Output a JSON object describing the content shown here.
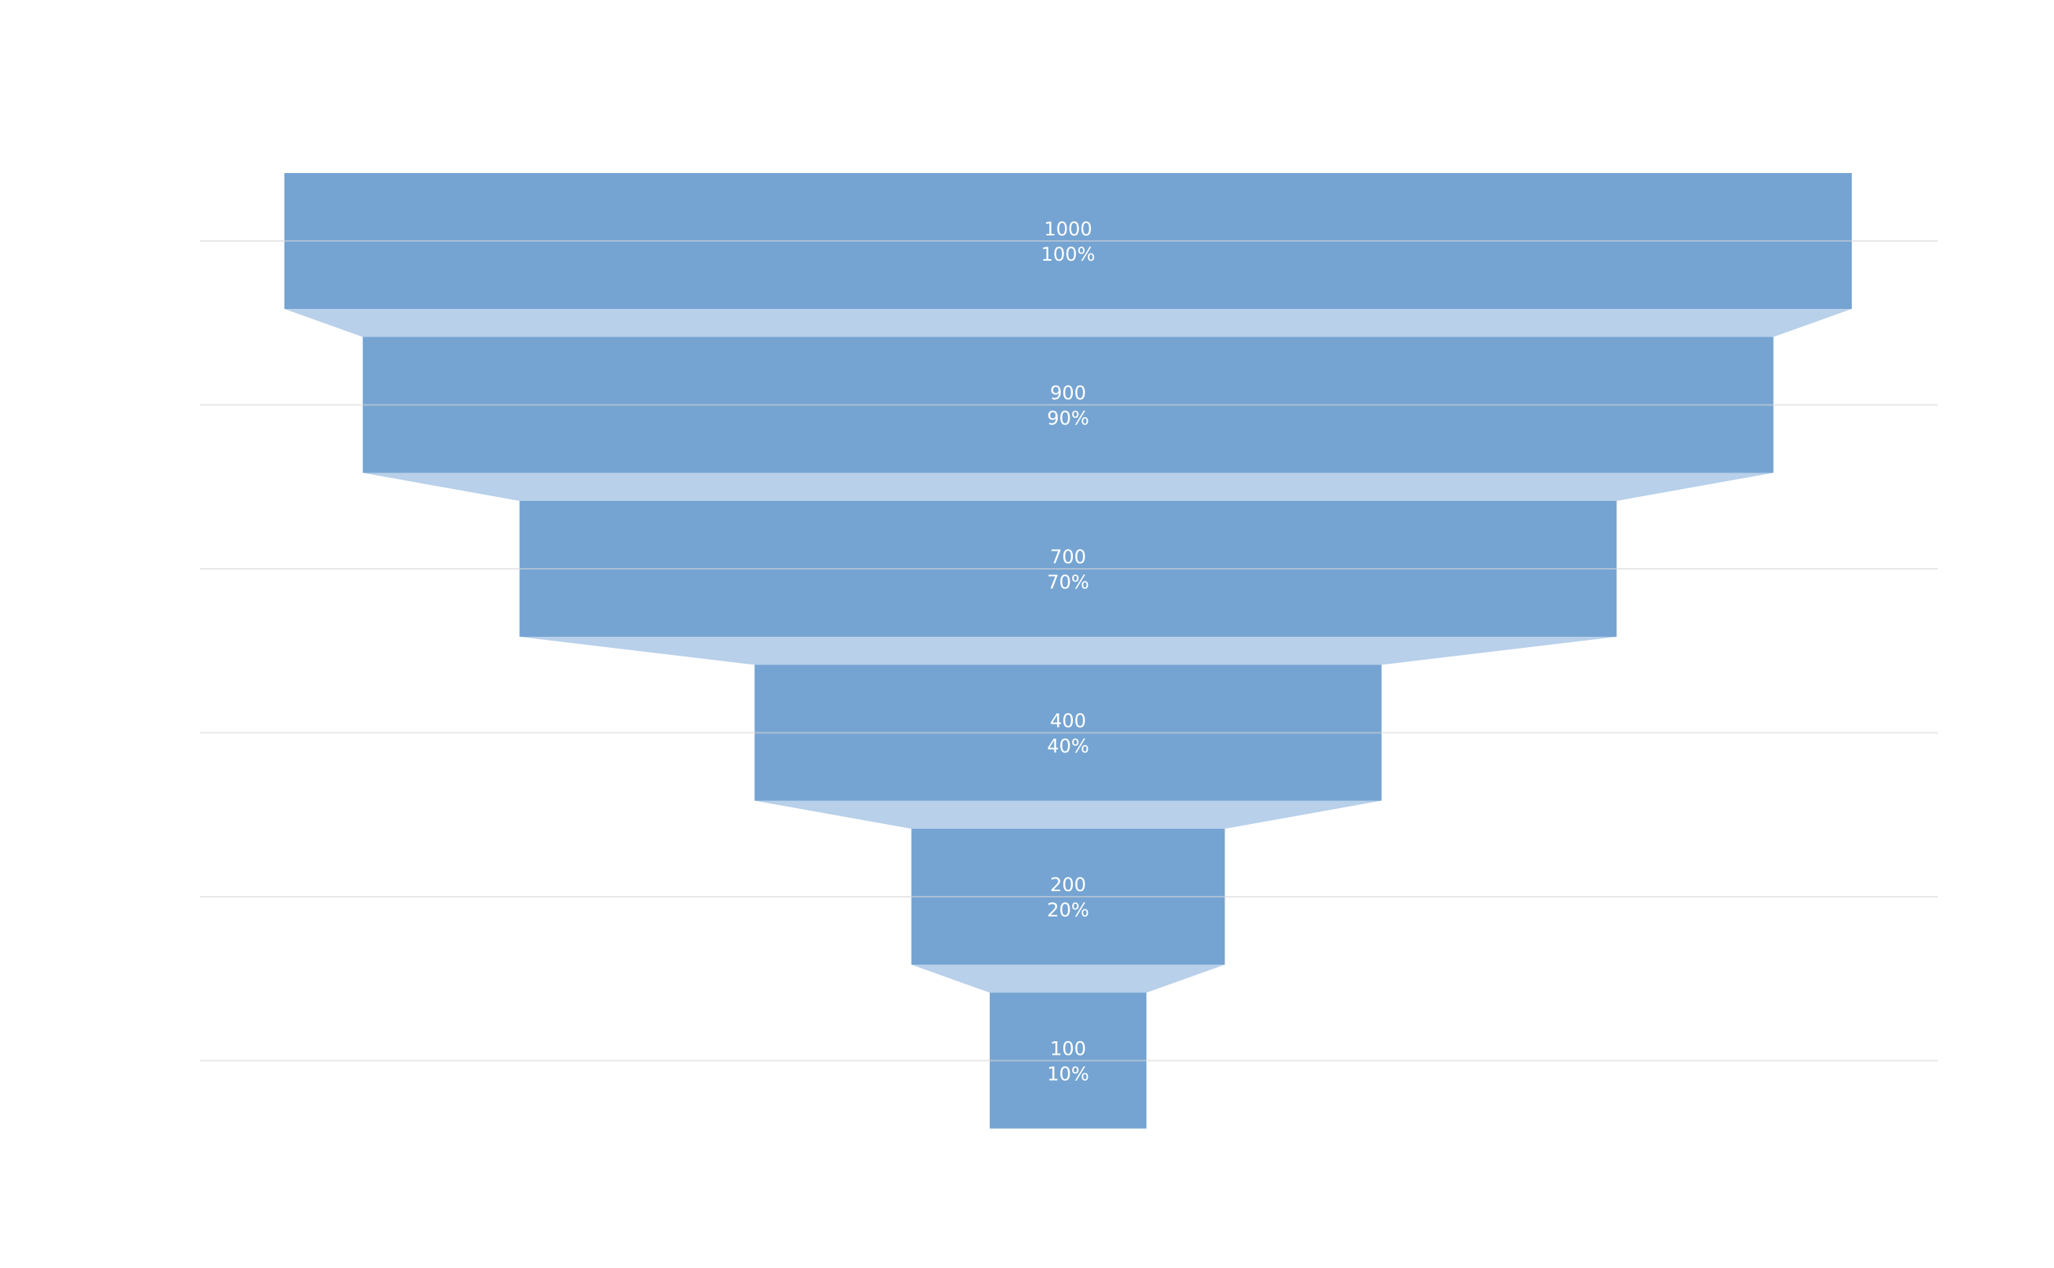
{
  "colors": {
    "bar": "#5b93c9",
    "connector": "#b8d0e9",
    "gridline": "#d6d6d6",
    "label": "#ffffff",
    "background": "#ffffff"
  },
  "chart_data": {
    "type": "funnel",
    "title": "",
    "categories": [
      "1000",
      "900",
      "700",
      "400",
      "200",
      "100"
    ],
    "values": [
      1000,
      900,
      700,
      400,
      200,
      100
    ],
    "percent_labels": [
      "100%",
      "90%",
      "70%",
      "40%",
      "20%",
      "10%"
    ],
    "value_labels": [
      "1000",
      "900",
      "700",
      "400",
      "200",
      "100"
    ],
    "grid": true,
    "legend": "none"
  }
}
